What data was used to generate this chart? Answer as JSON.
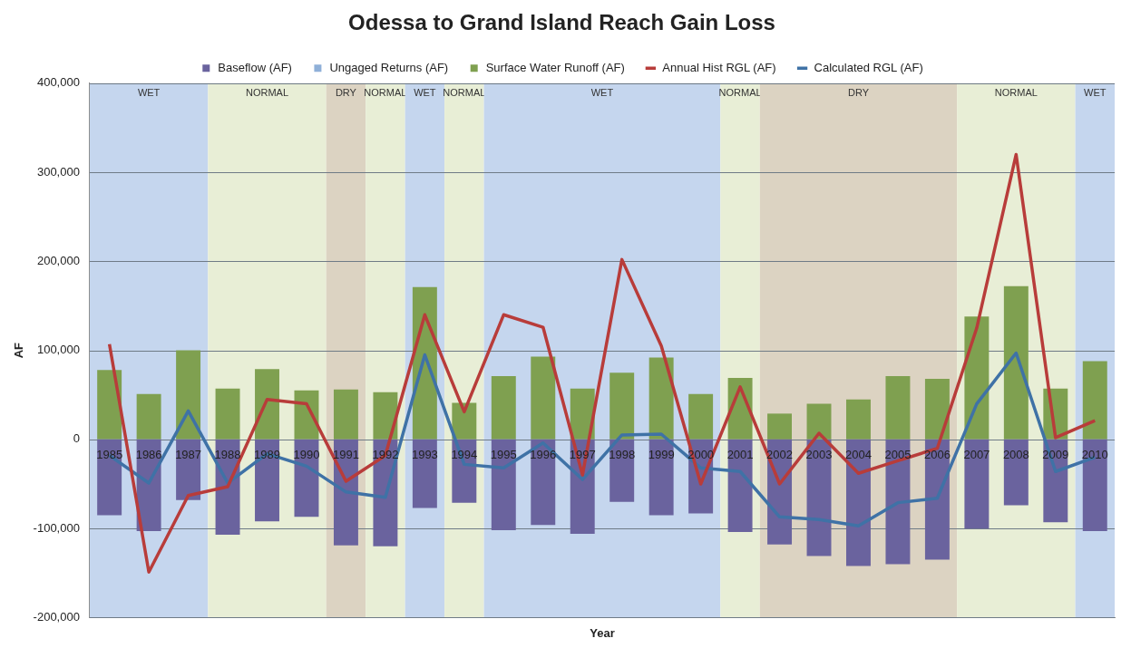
{
  "chart_data": {
    "type": "bar",
    "title": "Odessa to Grand Island Reach Gain Loss",
    "xlabel": "Year",
    "ylabel": "AF",
    "categories": [
      "1985",
      "1986",
      "1987",
      "1988",
      "1989",
      "1990",
      "1991",
      "1992",
      "1993",
      "1994",
      "1995",
      "1996",
      "1997",
      "1998",
      "1999",
      "2000",
      "2001",
      "2002",
      "2003",
      "2004",
      "2005",
      "2006",
      "2007",
      "2008",
      "2009",
      "2010"
    ],
    "stacked": true,
    "series": [
      {
        "name": "Baseflow (AF)",
        "color": "#6a639e",
        "values": [
          -85000,
          -103000,
          -68000,
          -107000,
          -92000,
          -87000,
          -119000,
          -120000,
          -77000,
          -71000,
          -102000,
          -96000,
          -106000,
          -70000,
          -85000,
          -83000,
          -104000,
          -118000,
          -131000,
          -142000,
          -140000,
          -135000,
          -100000,
          -74000,
          -93000,
          -103000
        ]
      },
      {
        "name": "Ungaged Returns (AF)",
        "color": "#8fb0d8",
        "values": [
          null,
          null,
          null,
          null,
          null,
          null,
          null,
          null,
          null,
          null,
          null,
          null,
          null,
          null,
          null,
          null,
          null,
          null,
          null,
          null,
          null,
          null,
          null,
          null,
          null,
          null
        ]
      },
      {
        "name": "Surface Water Runoff (AF)",
        "color": "#7fa050",
        "values": [
          78000,
          51000,
          100000,
          57000,
          79000,
          55000,
          56000,
          53000,
          171000,
          41000,
          71000,
          93000,
          57000,
          75000,
          92000,
          51000,
          69000,
          29000,
          40000,
          45000,
          71000,
          68000,
          138000,
          172000,
          57000,
          88000
        ]
      },
      {
        "name": "Annual Hist RGL (AF)",
        "type": "line",
        "color": "#b83c3a",
        "values": [
          107000,
          -149000,
          -63000,
          -53000,
          45000,
          40000,
          -47000,
          -18000,
          140000,
          31000,
          140000,
          126000,
          -40000,
          202000,
          105000,
          -50000,
          59000,
          -50000,
          7000,
          -38000,
          -24000,
          -10000,
          125000,
          320000,
          2000,
          21000
        ]
      },
      {
        "name": "Calculated RGL (AF)",
        "type": "line",
        "color": "#3f72a6",
        "values": [
          -18000,
          -49000,
          32000,
          -49000,
          -16000,
          -30000,
          -59000,
          -65000,
          95000,
          -28000,
          -32000,
          -4000,
          -45000,
          5000,
          6000,
          -32000,
          -36000,
          -87000,
          -90000,
          -97000,
          -71000,
          -66000,
          40000,
          97000,
          -36000,
          -20000
        ]
      }
    ],
    "bands": [
      {
        "axis": "x",
        "from": "1985",
        "to": "1987",
        "label": "WET",
        "color": "#c5d6ee"
      },
      {
        "axis": "x",
        "from": "1988",
        "to": "1990",
        "label": "NORMAL",
        "color": "#e8eed6"
      },
      {
        "axis": "x",
        "from": "1991",
        "to": "1991",
        "label": "DRY",
        "color": "#dcd3c2"
      },
      {
        "axis": "x",
        "from": "1992",
        "to": "1992",
        "label": "NORMAL",
        "color": "#e8eed6"
      },
      {
        "axis": "x",
        "from": "1993",
        "to": "1993",
        "label": "WET",
        "color": "#c5d6ee"
      },
      {
        "axis": "x",
        "from": "1994",
        "to": "1994",
        "label": "NORMAL",
        "color": "#e8eed6"
      },
      {
        "axis": "x",
        "from": "1995",
        "to": "2000",
        "label": "WET",
        "color": "#c5d6ee"
      },
      {
        "axis": "x",
        "from": "2001",
        "to": "2001",
        "label": "NORMAL",
        "color": "#e8eed6"
      },
      {
        "axis": "x",
        "from": "2002",
        "to": "2006",
        "label": "DRY",
        "color": "#dcd3c2"
      },
      {
        "axis": "x",
        "from": "2007",
        "to": "2009",
        "label": "NORMAL",
        "color": "#e8eed6"
      },
      {
        "axis": "x",
        "from": "2010",
        "to": "2010",
        "label": "WET",
        "color": "#c5d6ee"
      }
    ],
    "ylim": [
      -200000,
      400000
    ],
    "yticks": [
      {
        "value": -200000,
        "label": "-200,000"
      },
      {
        "value": -100000,
        "label": "-100,000"
      },
      0,
      {
        "value": 100000,
        "label": "100,000"
      },
      {
        "value": 200000,
        "label": "200,000"
      },
      {
        "value": 300000,
        "label": "300,000"
      },
      {
        "value": 400000,
        "label": "400,000"
      }
    ],
    "grid": "y",
    "legend": "top",
    "marker": "none",
    "line_style": "solid"
  }
}
